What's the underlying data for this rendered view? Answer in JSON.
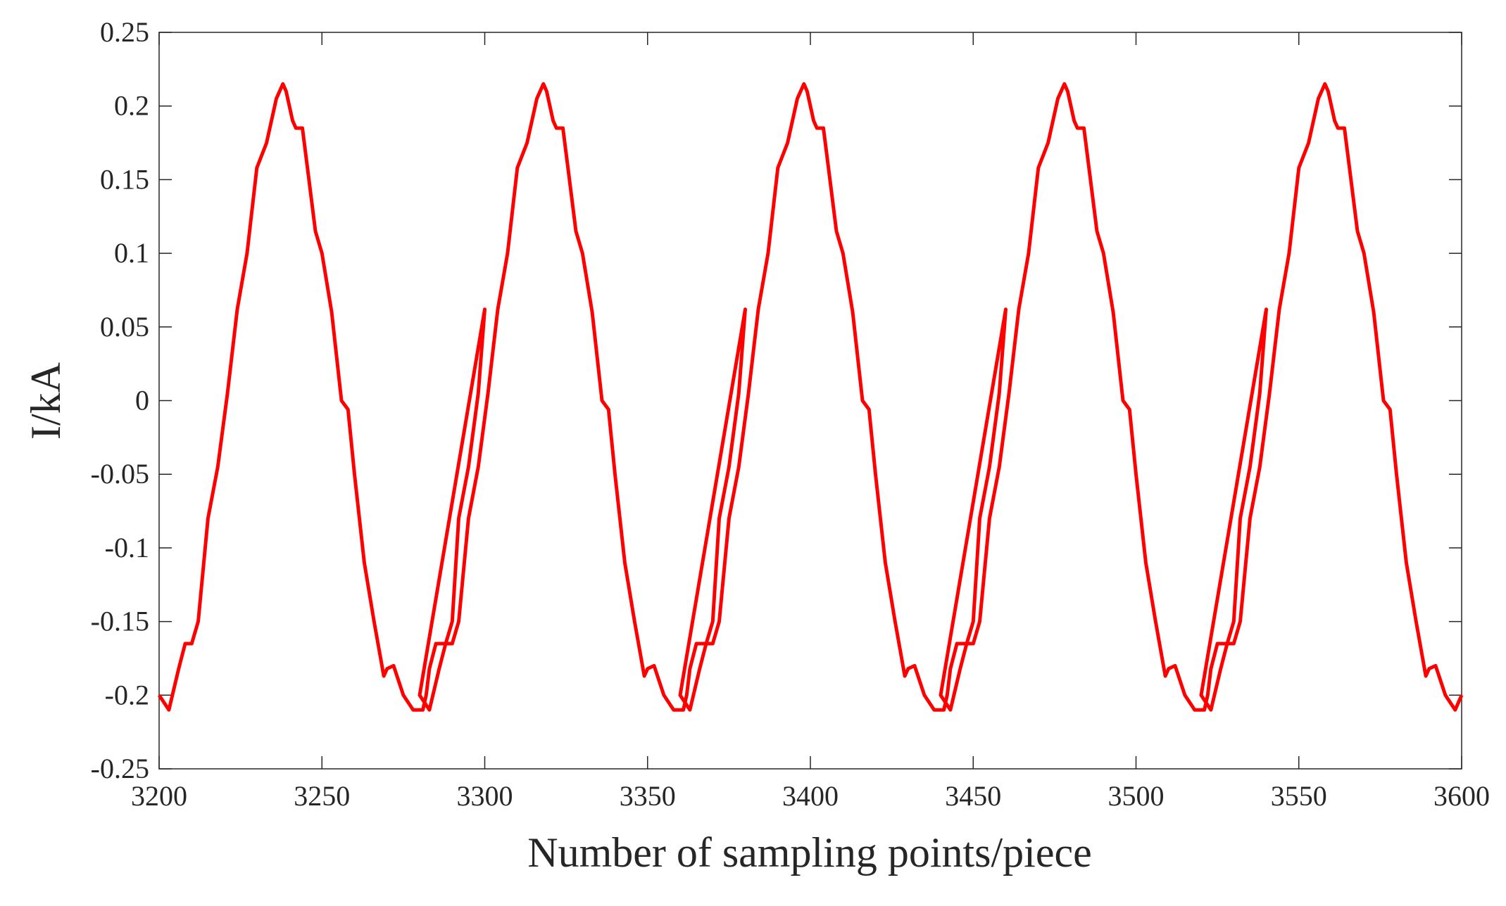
{
  "chart_data": {
    "type": "line",
    "title": "",
    "xlabel": "Number of sampling points/piece",
    "ylabel": "I/kA",
    "xlim": [
      3200,
      3600
    ],
    "ylim": [
      -0.25,
      0.25
    ],
    "x_ticks": [
      3200,
      3250,
      3300,
      3350,
      3400,
      3450,
      3500,
      3550,
      3600
    ],
    "x_tick_labels": [
      "3200",
      "3250",
      "3300",
      "3350",
      "3400",
      "3450",
      "3500",
      "3550",
      "3600"
    ],
    "y_ticks": [
      0.25,
      0.2,
      0.15,
      0.1,
      0.05,
      0,
      -0.05,
      -0.1,
      -0.15,
      -0.2,
      -0.25
    ],
    "y_tick_labels": [
      "0.25",
      "0.2",
      "0.15",
      "0.1",
      "0.05",
      "0",
      "-0.05",
      "-0.1",
      "-0.15",
      "-0.2",
      "-0.25"
    ],
    "grid": false,
    "line_color": "#ff0000",
    "series": [
      {
        "name": "",
        "period": 80,
        "x_start": 3200,
        "x_end": 3600,
        "one_period": {
          "x": [
            3200,
            3203,
            3206,
            3208,
            3210,
            3212,
            3215,
            3218,
            3221,
            3224,
            3227,
            3230,
            3233,
            3236,
            3238,
            3239,
            3240,
            3241,
            3242,
            3244,
            3246,
            3248,
            3250,
            3253,
            3256,
            3258,
            3260,
            3263,
            3266,
            3269,
            3270,
            3272,
            3275,
            3278,
            3281,
            3282,
            3283,
            3285,
            3288,
            3290,
            3292,
            3295,
            3298,
            3300
          ],
          "y": [
            -0.2,
            -0.21,
            -0.182,
            -0.165,
            -0.165,
            -0.15,
            -0.08,
            -0.045,
            0.005,
            0.062,
            0.1,
            0.158,
            0.175,
            0.205,
            0.215,
            0.21,
            0.2,
            0.19,
            0.185,
            0.185,
            0.15,
            0.115,
            0.1,
            0.06,
            0.0,
            -0.006,
            -0.05,
            -0.11,
            -0.15,
            -0.187,
            -0.182,
            -0.18,
            -0.2,
            -0.21,
            -0.21,
            -0.2,
            -0.182,
            -0.165,
            -0.165,
            -0.15,
            -0.08,
            -0.045,
            0.005,
            0.062
          ]
        }
      }
    ]
  }
}
